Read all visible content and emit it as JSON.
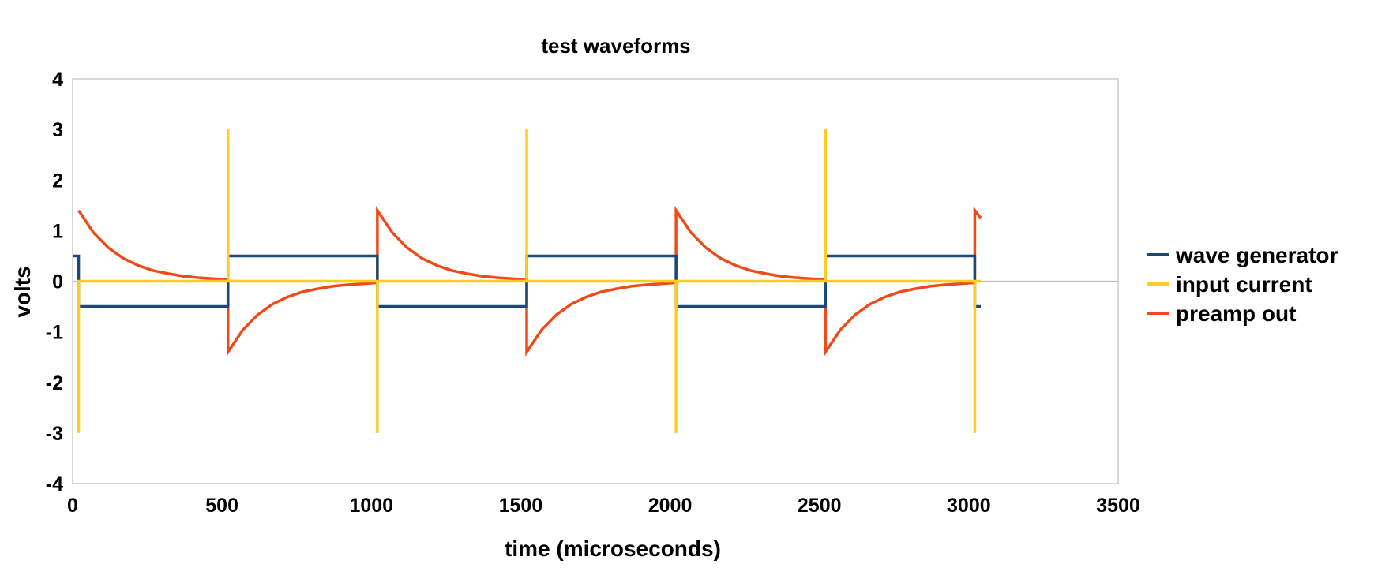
{
  "chart_data": {
    "type": "line",
    "title": "test waveforms",
    "xlabel": "time (microseconds)",
    "ylabel": "volts",
    "xlim": [
      0,
      3500
    ],
    "ylim": [
      -4,
      4
    ],
    "x_ticks": [
      "0",
      "500",
      "1000",
      "1500",
      "2000",
      "2500",
      "3000",
      "3500"
    ],
    "y_ticks": [
      "4",
      "3",
      "2",
      "1",
      "0",
      "-1",
      "-2",
      "-3",
      "-4"
    ],
    "grid": false,
    "legend_position": "right",
    "series": [
      {
        "name": "wave generator",
        "color": "#1a4a7a",
        "x": [
          0,
          20,
          20,
          520,
          520,
          1020,
          1020,
          1520,
          1520,
          2020,
          2020,
          2520,
          2520,
          3020,
          3020,
          3040
        ],
        "y": [
          0.5,
          0.5,
          -0.5,
          -0.5,
          0.5,
          0.5,
          -0.5,
          -0.5,
          0.5,
          0.5,
          -0.5,
          -0.5,
          0.5,
          0.5,
          -0.5,
          -0.5
        ]
      },
      {
        "name": "input current",
        "color": "#ffcc22",
        "x": [
          20,
          20,
          20,
          520,
          520,
          520,
          1020,
          1020,
          1020,
          1520,
          1520,
          1520,
          2020,
          2020,
          2020,
          2520,
          2520,
          2520,
          3020,
          3020,
          3020,
          3040
        ],
        "y": [
          0,
          -3,
          0,
          0,
          3,
          0,
          0,
          -3,
          0,
          0,
          3,
          0,
          0,
          -3,
          0,
          0,
          3,
          0,
          0,
          -3,
          0,
          0
        ]
      },
      {
        "name": "preamp out",
        "color": "#f04a1a",
        "x": [
          20,
          70,
          120,
          170,
          220,
          270,
          320,
          370,
          420,
          470,
          520,
          520,
          570,
          620,
          670,
          720,
          770,
          820,
          870,
          920,
          970,
          1020,
          1020,
          1070,
          1120,
          1170,
          1220,
          1270,
          1320,
          1370,
          1420,
          1470,
          1520,
          1520,
          1570,
          1620,
          1670,
          1720,
          1770,
          1820,
          1870,
          1920,
          1970,
          2020,
          2020,
          2070,
          2120,
          2170,
          2220,
          2270,
          2320,
          2370,
          2420,
          2470,
          2520,
          2520,
          2570,
          2620,
          2670,
          2720,
          2770,
          2820,
          2870,
          2920,
          2970,
          3020,
          3020,
          3040
        ],
        "y": [
          1.4,
          0.96,
          0.66,
          0.45,
          0.31,
          0.21,
          0.15,
          0.1,
          0.07,
          0.05,
          0.03,
          -1.4,
          -0.96,
          -0.66,
          -0.45,
          -0.31,
          -0.21,
          -0.15,
          -0.1,
          -0.07,
          -0.05,
          -0.03,
          1.4,
          0.96,
          0.66,
          0.45,
          0.31,
          0.21,
          0.15,
          0.1,
          0.07,
          0.05,
          0.03,
          -1.4,
          -0.96,
          -0.66,
          -0.45,
          -0.31,
          -0.21,
          -0.15,
          -0.1,
          -0.07,
          -0.05,
          -0.03,
          1.4,
          0.96,
          0.66,
          0.45,
          0.31,
          0.21,
          0.15,
          0.1,
          0.07,
          0.05,
          0.03,
          -1.4,
          -0.96,
          -0.66,
          -0.45,
          -0.31,
          -0.21,
          -0.15,
          -0.1,
          -0.07,
          -0.05,
          -0.03,
          1.4,
          1.25
        ]
      }
    ]
  }
}
